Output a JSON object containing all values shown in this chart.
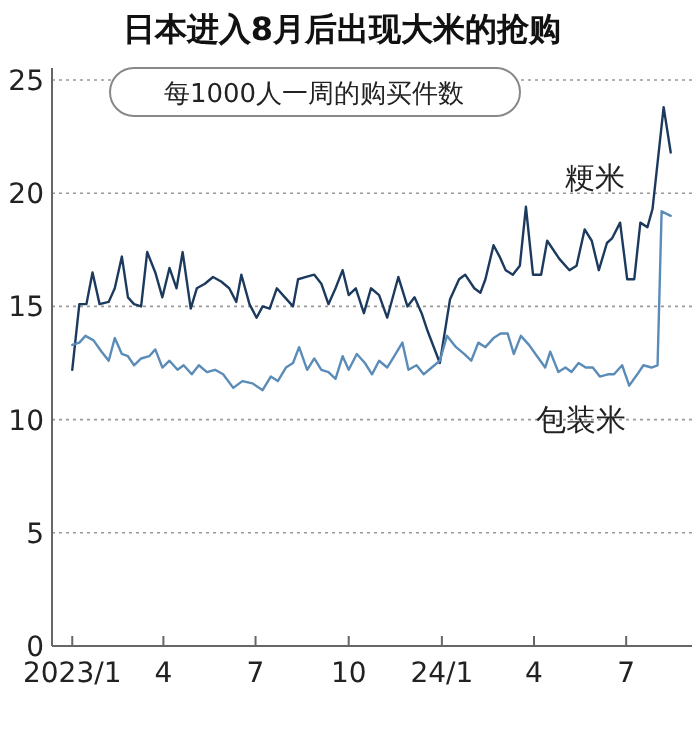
{
  "chart_data": {
    "type": "line",
    "title": "日本进入8月后出现大米的抢购",
    "subtitle": "每1000人一周的购买件数",
    "xlim": [
      "2022-12-12",
      "2024-09-04"
    ],
    "xticks": [
      {
        "value": "2023-01-01",
        "label": "2023/1"
      },
      {
        "value": "2023-04-01",
        "label": "4"
      },
      {
        "value": "2023-07-01",
        "label": "7"
      },
      {
        "value": "2023-10-01",
        "label": "10"
      },
      {
        "value": "2024-01-01",
        "label": "24/1"
      },
      {
        "value": "2024-04-01",
        "label": "4"
      },
      {
        "value": "2024-07-01",
        "label": "7"
      }
    ],
    "ylim": [
      0,
      25
    ],
    "yticks": [
      0,
      5,
      10,
      15,
      20,
      25
    ],
    "grid": "y",
    "marker": "none",
    "line_style": "solid",
    "series": [
      {
        "name": "粳米",
        "color": "#1c3a5e",
        "x": [
          "2023-01-01",
          "2023-01-08",
          "2023-01-15",
          "2023-01-21",
          "2023-01-28",
          "2023-02-06",
          "2023-02-12",
          "2023-02-19",
          "2023-02-25",
          "2023-03-03",
          "2023-03-10",
          "2023-03-16",
          "2023-03-24",
          "2023-03-31",
          "2023-04-07",
          "2023-04-14",
          "2023-04-20",
          "2023-04-28",
          "2023-05-04",
          "2023-05-12",
          "2023-05-20",
          "2023-05-28",
          "2023-06-05",
          "2023-06-12",
          "2023-06-17",
          "2023-06-25",
          "2023-07-02",
          "2023-07-08",
          "2023-07-15",
          "2023-07-22",
          "2023-07-30",
          "2023-08-07",
          "2023-08-12",
          "2023-08-20",
          "2023-08-28",
          "2023-09-04",
          "2023-09-11",
          "2023-09-18",
          "2023-09-25",
          "2023-10-01",
          "2023-10-08",
          "2023-10-16",
          "2023-10-23",
          "2023-10-31",
          "2023-11-08",
          "2023-11-19",
          "2023-11-28",
          "2023-12-05",
          "2023-12-12",
          "2023-12-18",
          "2023-12-30",
          "2024-01-09",
          "2024-01-18",
          "2024-01-24",
          "2024-02-02",
          "2024-02-08",
          "2024-02-13",
          "2024-02-21",
          "2024-02-27",
          "2024-03-04",
          "2024-03-11",
          "2024-03-18",
          "2024-03-24",
          "2024-03-31",
          "2024-04-08",
          "2024-04-14",
          "2024-04-26",
          "2024-05-06",
          "2024-05-13",
          "2024-05-21",
          "2024-05-28",
          "2024-06-04",
          "2024-06-12",
          "2024-06-17",
          "2024-06-25",
          "2024-07-02",
          "2024-07-09",
          "2024-07-15",
          "2024-07-22",
          "2024-07-27",
          "2024-08-07",
          "2024-08-14"
        ],
        "values": [
          12.2,
          15.1,
          15.1,
          16.5,
          15.1,
          15.2,
          15.8,
          17.2,
          15.4,
          15.1,
          15.0,
          17.4,
          16.5,
          15.4,
          16.7,
          15.8,
          17.4,
          14.9,
          15.8,
          16.0,
          16.3,
          16.1,
          15.8,
          15.2,
          16.4,
          15.1,
          14.5,
          15.0,
          14.9,
          15.8,
          15.4,
          15.0,
          16.2,
          16.3,
          16.4,
          16.0,
          15.1,
          15.8,
          16.6,
          15.5,
          15.8,
          14.7,
          15.8,
          15.5,
          14.5,
          16.3,
          15.0,
          15.4,
          14.7,
          13.9,
          12.5,
          15.3,
          16.2,
          16.4,
          15.8,
          15.6,
          16.2,
          17.7,
          17.2,
          16.6,
          16.4,
          16.8,
          19.4,
          16.4,
          16.4,
          17.9,
          17.1,
          16.6,
          16.8,
          18.4,
          17.9,
          16.6,
          17.8,
          18.0,
          18.7,
          16.2,
          16.2,
          18.7,
          18.5,
          19.3,
          23.8,
          21.8
        ]
      },
      {
        "name": "包装米",
        "color": "#5b8cb8",
        "x": [
          "2023-01-01",
          "2023-01-08",
          "2023-01-14",
          "2023-01-22",
          "2023-01-30",
          "2023-02-06",
          "2023-02-12",
          "2023-02-19",
          "2023-02-25",
          "2023-03-03",
          "2023-03-10",
          "2023-03-18",
          "2023-03-24",
          "2023-03-31",
          "2023-04-07",
          "2023-04-15",
          "2023-04-21",
          "2023-04-29",
          "2023-05-06",
          "2023-05-14",
          "2023-05-22",
          "2023-05-30",
          "2023-06-09",
          "2023-06-18",
          "2023-06-28",
          "2023-07-08",
          "2023-07-16",
          "2023-07-23",
          "2023-07-31",
          "2023-08-07",
          "2023-08-13",
          "2023-08-21",
          "2023-08-28",
          "2023-09-04",
          "2023-09-11",
          "2023-09-18",
          "2023-09-25",
          "2023-10-01",
          "2023-10-09",
          "2023-10-17",
          "2023-10-24",
          "2023-10-31",
          "2023-11-08",
          "2023-11-15",
          "2023-11-23",
          "2023-11-29",
          "2023-12-07",
          "2023-12-14",
          "2023-12-22",
          "2023-12-30",
          "2024-01-06",
          "2024-01-15",
          "2024-01-23",
          "2024-01-30",
          "2024-02-06",
          "2024-02-13",
          "2024-02-21",
          "2024-02-28",
          "2024-03-06",
          "2024-03-12",
          "2024-03-19",
          "2024-03-27",
          "2024-04-04",
          "2024-04-12",
          "2024-04-17",
          "2024-04-25",
          "2024-05-02",
          "2024-05-08",
          "2024-05-15",
          "2024-05-22",
          "2024-05-29",
          "2024-06-05",
          "2024-06-13",
          "2024-06-19",
          "2024-06-27",
          "2024-07-04",
          "2024-07-12",
          "2024-07-18",
          "2024-07-26",
          "2024-08-01",
          "2024-08-05",
          "2024-08-14"
        ],
        "values": [
          13.3,
          13.4,
          13.7,
          13.5,
          13.0,
          12.6,
          13.6,
          12.9,
          12.8,
          12.4,
          12.7,
          12.8,
          13.1,
          12.3,
          12.6,
          12.2,
          12.4,
          12.0,
          12.4,
          12.1,
          12.2,
          12.0,
          11.4,
          11.7,
          11.6,
          11.3,
          11.9,
          11.7,
          12.3,
          12.5,
          13.2,
          12.2,
          12.7,
          12.2,
          12.1,
          11.8,
          12.8,
          12.2,
          12.9,
          12.5,
          12.0,
          12.6,
          12.3,
          12.8,
          13.4,
          12.2,
          12.4,
          12.0,
          12.3,
          12.6,
          13.7,
          13.2,
          12.9,
          12.6,
          13.4,
          13.2,
          13.6,
          13.8,
          13.8,
          12.9,
          13.7,
          13.3,
          12.8,
          12.3,
          13.0,
          12.1,
          12.3,
          12.1,
          12.5,
          12.3,
          12.3,
          11.9,
          12.0,
          12.0,
          12.4,
          11.5,
          12.0,
          12.4,
          12.3,
          12.4,
          19.2,
          19.0
        ]
      }
    ]
  }
}
